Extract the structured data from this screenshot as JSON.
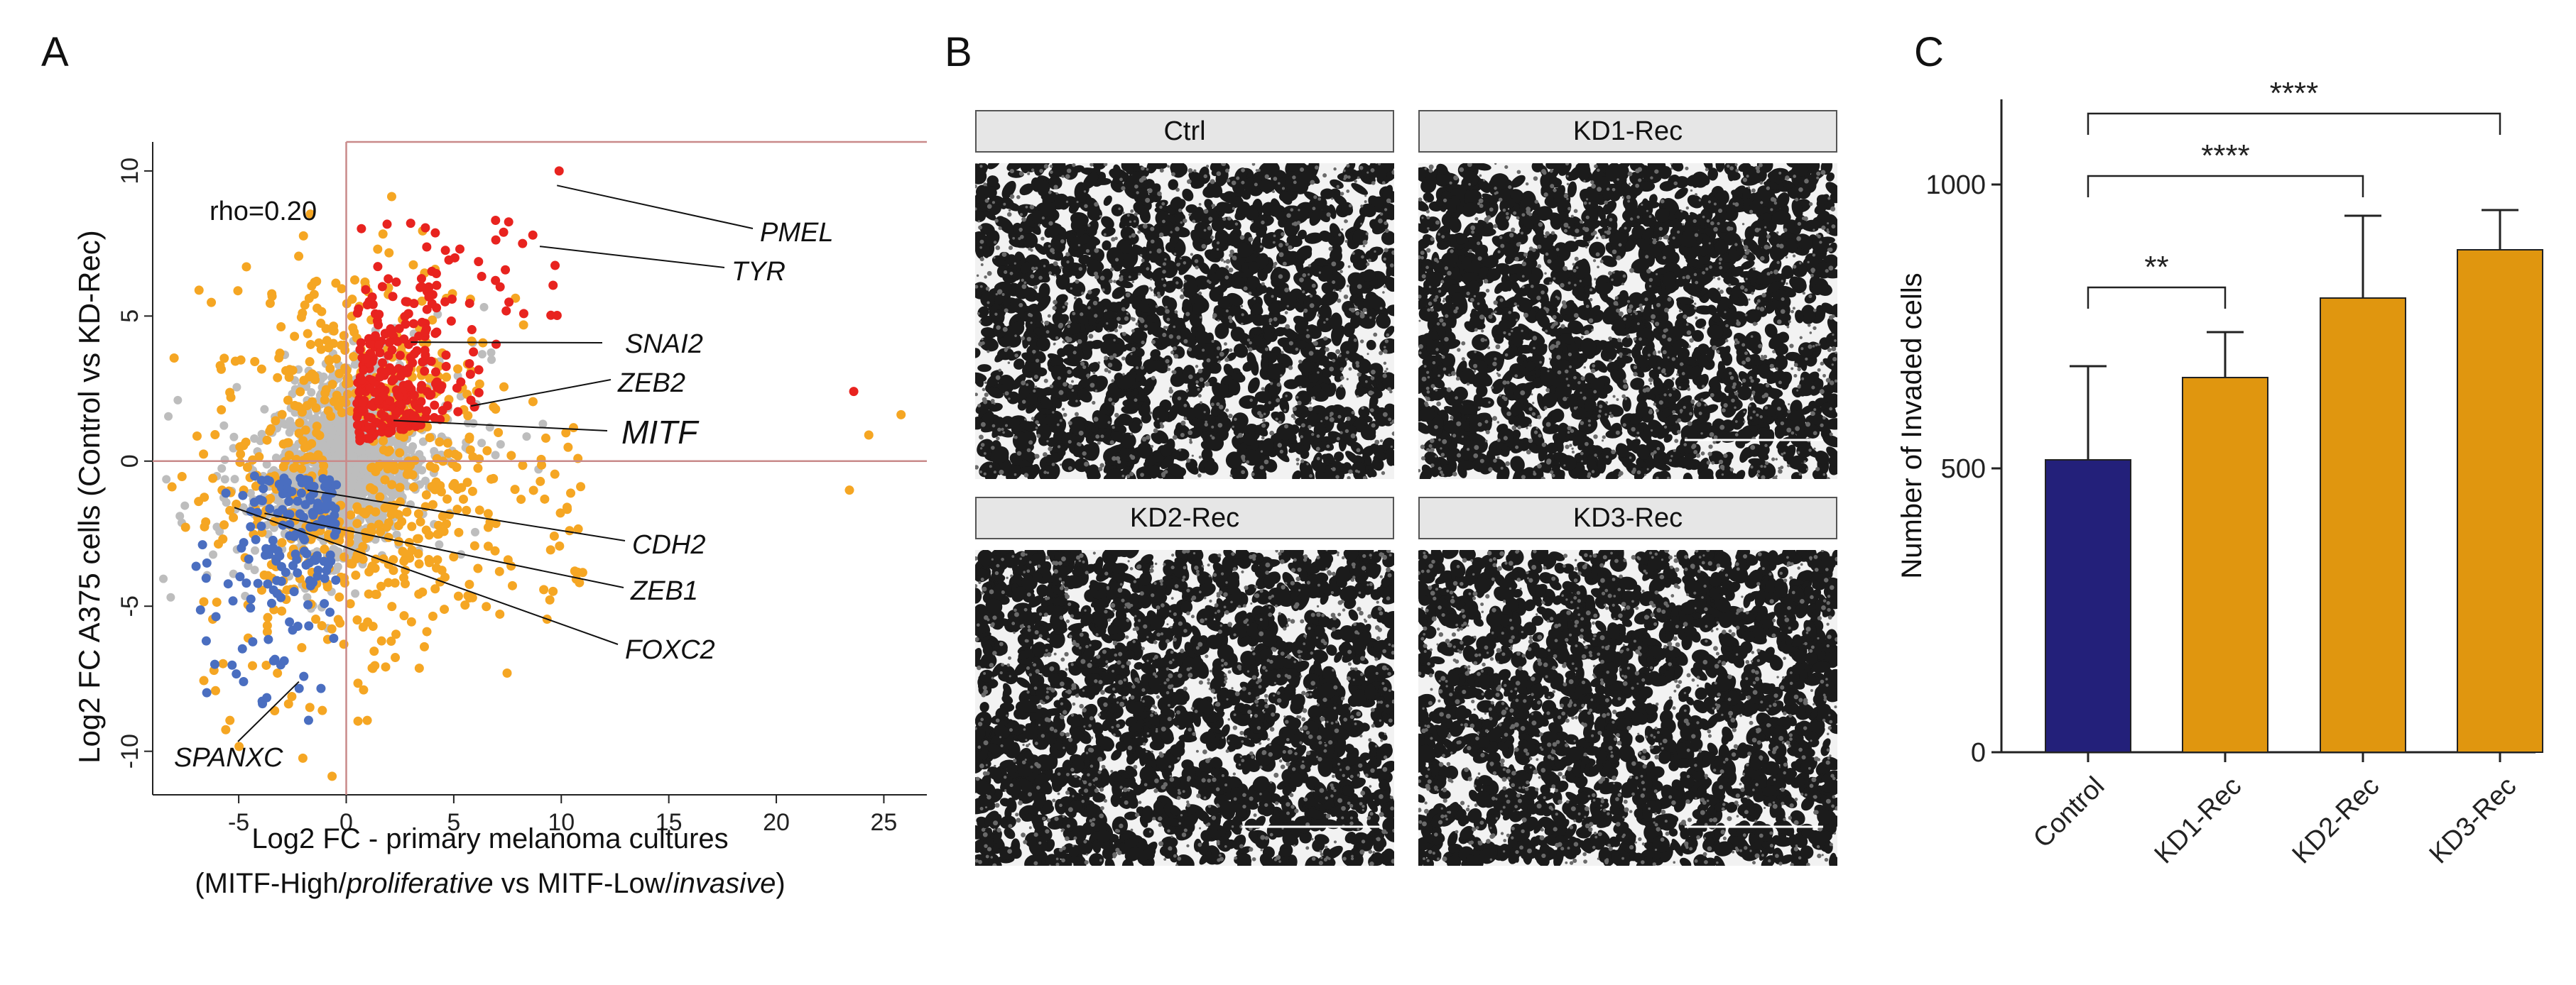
{
  "panels": {
    "a": {
      "letter": "A"
    },
    "b": {
      "letter": "B"
    },
    "c": {
      "letter": "C"
    }
  },
  "colors": {
    "red": "#e8231f",
    "orange": "#f5a623",
    "blue": "#4a6ec0",
    "grey": "#bdbdbd",
    "navy": "#23207a",
    "bar_orange": "#e0960f",
    "refline": "#c98a8a"
  },
  "chart_data": [
    {
      "type": "scatter",
      "panel": "A",
      "annotation": "rho=0.20",
      "xlabel": "Log2 FC - primary melanoma cultures",
      "xlabel2_parts": [
        "(MITF-High/",
        "proliferative",
        " vs MITF-Low/",
        "invasive",
        ")"
      ],
      "ylabel": "Log2 FC A375 cells (Control vs KD-Rec)",
      "xlim": [
        -9,
        27
      ],
      "ylim": [
        -11.5,
        11
      ],
      "xticks": [
        -5,
        0,
        5,
        10,
        15,
        20,
        25
      ],
      "yticks": [
        -10,
        -5,
        0,
        5,
        10
      ],
      "labeled_genes": [
        {
          "name": "PMEL",
          "x": 9.8,
          "y": 9.5
        },
        {
          "name": "TYR",
          "x": 9.0,
          "y": 7.4
        },
        {
          "name": "SNAI2",
          "x": 3.0,
          "y": 4.1
        },
        {
          "name": "ZEB2",
          "x": 5.8,
          "y": 1.9
        },
        {
          "name": "MITF",
          "x": 2.2,
          "y": 1.4
        },
        {
          "name": "CDH2",
          "x": -1.8,
          "y": -1.0
        },
        {
          "name": "ZEB1",
          "x": -3.8,
          "y": -1.8
        },
        {
          "name": "FOXC2",
          "x": -5.2,
          "y": -1.6
        },
        {
          "name": "SPANXC",
          "x": -2.2,
          "y": -7.6
        }
      ],
      "outliers": [
        {
          "x": 23.6,
          "y": 2.4,
          "color": "red"
        },
        {
          "x": 23.4,
          "y": -1.0,
          "color": "orange"
        },
        {
          "x": 24.3,
          "y": 0.9,
          "color": "orange"
        },
        {
          "x": 25.8,
          "y": 1.6,
          "color": "orange"
        }
      ]
    },
    {
      "type": "bar",
      "panel": "C",
      "ylabel": "Number of Invaded cells",
      "categories": [
        "Control",
        "KD1-Rec",
        "KD2-Rec",
        "KD3-Rec"
      ],
      "values": [
        515,
        660,
        800,
        885
      ],
      "errors": [
        165,
        80,
        145,
        70
      ],
      "ylim": [
        0,
        1150
      ],
      "yticks": [
        0,
        500,
        1000
      ],
      "significance": [
        {
          "from": 0,
          "to": 1,
          "label": "**"
        },
        {
          "from": 0,
          "to": 2,
          "label": "****"
        },
        {
          "from": 0,
          "to": 3,
          "label": "****"
        }
      ]
    }
  ],
  "micrographs": [
    {
      "label": "Ctrl",
      "density": 0.5,
      "scale_bar": false
    },
    {
      "label": "KD1-Rec",
      "density": 0.62,
      "scale_bar": true
    },
    {
      "label": "KD2-Rec",
      "density": 0.68,
      "scale_bar": true
    },
    {
      "label": "KD3-Rec",
      "density": 0.7,
      "scale_bar": true
    }
  ]
}
